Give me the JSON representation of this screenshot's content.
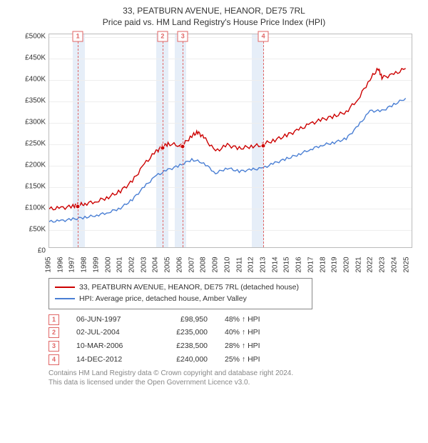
{
  "title_line1": "33, PEATBURN AVENUE, HEANOR, DE75 7RL",
  "title_line2": "Price paid vs. HM Land Registry's House Price Index (HPI)",
  "chart": {
    "xmin": 1995,
    "xmax": 2025.5,
    "ymin": 0,
    "ymax": 500000,
    "yticks": [
      0,
      50000,
      100000,
      150000,
      200000,
      250000,
      300000,
      350000,
      400000,
      450000,
      500000
    ],
    "yticklabels": [
      "£0",
      "£50K",
      "£100K",
      "£150K",
      "£200K",
      "£250K",
      "£300K",
      "£350K",
      "£400K",
      "£450K",
      "£500K"
    ],
    "xticks": [
      1995,
      1996,
      1997,
      1998,
      1999,
      2000,
      2001,
      2002,
      2003,
      2004,
      2005,
      2006,
      2007,
      2008,
      2009,
      2010,
      2011,
      2012,
      2013,
      2014,
      2015,
      2016,
      2017,
      2018,
      2019,
      2020,
      2021,
      2022,
      2023,
      2024,
      2025
    ],
    "bands": [
      {
        "from": 1997,
        "to": 1998
      },
      {
        "from": 2004,
        "to": 2005
      },
      {
        "from": 2005.5,
        "to": 2006.5
      },
      {
        "from": 2012,
        "to": 2013
      }
    ],
    "vlines": [
      1997.4,
      2004.5,
      2006.2,
      2012.95
    ],
    "markers": [
      {
        "n": "1",
        "x": 1997.4,
        "y": 98950
      },
      {
        "n": "2",
        "x": 2004.5,
        "y": 235000
      },
      {
        "n": "3",
        "x": 2006.2,
        "y": 238500
      },
      {
        "n": "4",
        "x": 2012.95,
        "y": 240000
      }
    ],
    "property_color": "#cc0000",
    "hpi_color": "#4a7fd4",
    "property_series": [
      [
        1995,
        90000
      ],
      [
        1996,
        92000
      ],
      [
        1997,
        96000
      ],
      [
        1997.4,
        98950
      ],
      [
        1998,
        102000
      ],
      [
        1999,
        108000
      ],
      [
        2000,
        118000
      ],
      [
        2001,
        132000
      ],
      [
        2002,
        155000
      ],
      [
        2003,
        195000
      ],
      [
        2004,
        225000
      ],
      [
        2004.5,
        235000
      ],
      [
        2005,
        243000
      ],
      [
        2006,
        239000
      ],
      [
        2006.2,
        238500
      ],
      [
        2007,
        262000
      ],
      [
        2007.5,
        270000
      ],
      [
        2008,
        258000
      ],
      [
        2009,
        225000
      ],
      [
        2010,
        240000
      ],
      [
        2011,
        232000
      ],
      [
        2012,
        237000
      ],
      [
        2012.95,
        240000
      ],
      [
        2013,
        242000
      ],
      [
        2014,
        252000
      ],
      [
        2015,
        263000
      ],
      [
        2016,
        276000
      ],
      [
        2017,
        290000
      ],
      [
        2018,
        300000
      ],
      [
        2019,
        308000
      ],
      [
        2020,
        318000
      ],
      [
        2021,
        348000
      ],
      [
        2022,
        395000
      ],
      [
        2022.7,
        420000
      ],
      [
        2023,
        398000
      ],
      [
        2024,
        406000
      ],
      [
        2025,
        420000
      ]
    ],
    "hpi_series": [
      [
        1995,
        60000
      ],
      [
        1996,
        62000
      ],
      [
        1997,
        66000
      ],
      [
        1998,
        70000
      ],
      [
        1999,
        75000
      ],
      [
        2000,
        82000
      ],
      [
        2001,
        92000
      ],
      [
        2002,
        112000
      ],
      [
        2003,
        142000
      ],
      [
        2004,
        168000
      ],
      [
        2005,
        182000
      ],
      [
        2006,
        192000
      ],
      [
        2007,
        206000
      ],
      [
        2008,
        198000
      ],
      [
        2009,
        174000
      ],
      [
        2010,
        186000
      ],
      [
        2011,
        178000
      ],
      [
        2012,
        182000
      ],
      [
        2013,
        186000
      ],
      [
        2014,
        198000
      ],
      [
        2015,
        208000
      ],
      [
        2016,
        218000
      ],
      [
        2017,
        230000
      ],
      [
        2018,
        240000
      ],
      [
        2019,
        246000
      ],
      [
        2020,
        255000
      ],
      [
        2021,
        285000
      ],
      [
        2022,
        320000
      ],
      [
        2023,
        320000
      ],
      [
        2024,
        335000
      ],
      [
        2025,
        350000
      ]
    ]
  },
  "legend": {
    "property_label": "33, PEATBURN AVENUE, HEANOR, DE75 7RL (detached house)",
    "hpi_label": "HPI: Average price, detached house, Amber Valley"
  },
  "transactions": [
    {
      "n": "1",
      "date": "06-JUN-1997",
      "price": "£98,950",
      "pct": "48% ↑ HPI"
    },
    {
      "n": "2",
      "date": "02-JUL-2004",
      "price": "£235,000",
      "pct": "40% ↑ HPI"
    },
    {
      "n": "3",
      "date": "10-MAR-2006",
      "price": "£238,500",
      "pct": "28% ↑ HPI"
    },
    {
      "n": "4",
      "date": "14-DEC-2012",
      "price": "£240,000",
      "pct": "25% ↑ HPI"
    }
  ],
  "footer_line1": "Contains HM Land Registry data © Crown copyright and database right 2024.",
  "footer_line2": "This data is licensed under the Open Government Licence v3.0."
}
